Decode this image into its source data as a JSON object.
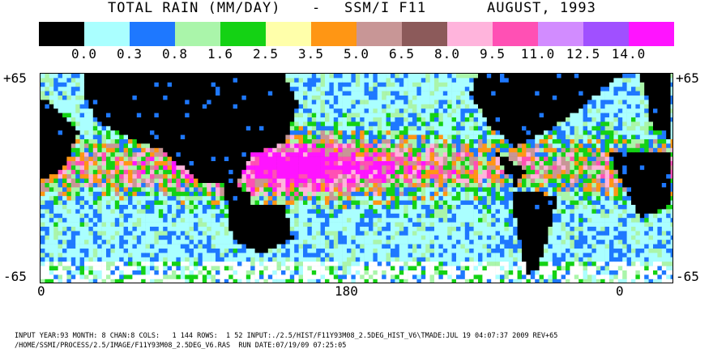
{
  "title": {
    "product": "TOTAL RAIN (MM/DAY)",
    "separator": "-",
    "sensor": "SSM/I F11",
    "date": "AUGUST, 1993"
  },
  "legend": {
    "colors": [
      "#000000",
      "#aaffff",
      "#1e78ff",
      "#aaf5aa",
      "#14d214",
      "#ffffaa",
      "#ff9614",
      "#c89696",
      "#8c5a5a",
      "#ffb4dc",
      "#ff50b4",
      "#d28cff",
      "#a050ff",
      "#ff14ff"
    ],
    "tick_labels": [
      "0.0",
      "0.3",
      "0.8",
      "1.6",
      "2.5",
      "3.5",
      "5.0",
      "6.5",
      "8.0",
      "9.5",
      "11.0",
      "12.5",
      "14.0"
    ]
  },
  "map": {
    "lat_top_left": "+65",
    "lat_top_right": "+65",
    "lat_bottom_left": "-65",
    "lat_bottom_right": "-65",
    "lon_labels": [
      "0",
      "180",
      "0"
    ]
  },
  "footer": {
    "line1": "INPUT YEAR:93 MONTH: 8 CHAN:8 COLS:   1 144 ROWS:  1 52 INPUT:./2.5/HIST/F11Y93M08_2.5DEG_HIST_V6\\TMADE:JUL 19 04:07:37 2009 REV+65",
    "line2": "/HOME/SSMI/PROCESS/2.5/IMAGE/F11Y93M08_2.5DEG_V6.RAS  RUN DATE:07/19/09 07:25:05"
  }
}
